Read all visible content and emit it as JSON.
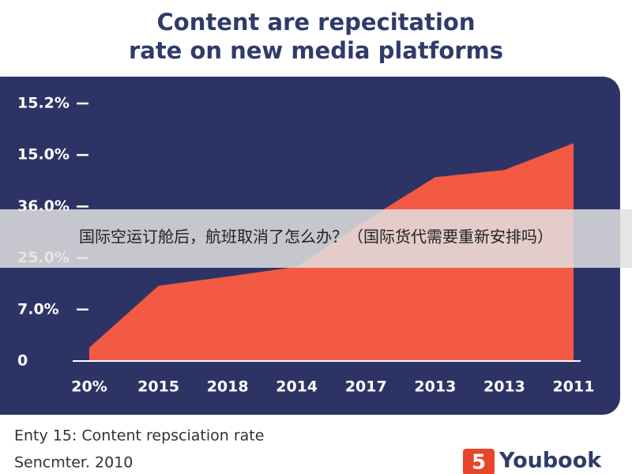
{
  "chart_data": {
    "type": "area",
    "title": [
      "Content are repecitation",
      "rate on new media platforms"
    ],
    "categories": [
      "20%",
      "2015",
      "2018",
      "2014",
      "2017",
      "2013",
      "2013",
      "2011"
    ],
    "values": [
      0.26,
      1.46,
      1.64,
      1.83,
      2.73,
      3.57,
      3.71,
      4.23
    ],
    "color": "#f25a43",
    "ylim": [
      0,
      5
    ],
    "yticks": [
      {
        "value": 0,
        "label": "0"
      },
      {
        "value": 1,
        "label": "7.0%"
      },
      {
        "value": 2,
        "label": "25.0%"
      },
      {
        "value": 3,
        "label": "36.0%"
      },
      {
        "value": 4,
        "label": "15.0%"
      },
      {
        "value": 5,
        "label": "15.2%"
      }
    ],
    "caption": "Enty 15: Content repsciation rate",
    "source": "Sencmter. 2010",
    "logo": {
      "mark": "5",
      "text": "Youbook"
    },
    "banner": "国际空运订舱后，航班取消了怎么办？（国际货代需要重新安排吗）"
  }
}
